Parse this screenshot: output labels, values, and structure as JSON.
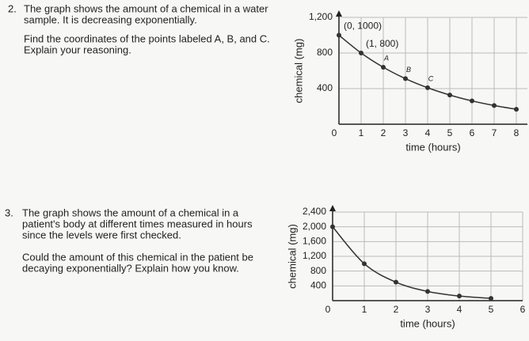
{
  "problems": [
    {
      "number": "2.",
      "lines": [
        "The graph shows the amount of a chemical in a water",
        "sample. It is decreasing exponentially."
      ],
      "question": [
        "Find the coordinates of the points labeled A, B, and C.",
        "Explain your reasoning."
      ]
    },
    {
      "number": "3.",
      "lines": [
        "The graph shows the amount of a chemical in a",
        "patient's body at different times measured in hours",
        "since the levels were first checked."
      ],
      "question": [
        "Could the amount of this chemical in the patient be",
        "decaying exponentially? Explain how you know."
      ]
    }
  ],
  "chart_data": [
    {
      "type": "scatter",
      "x_label": "time (hours)",
      "y_label": "chemical (mg)",
      "xlim": [
        0,
        8.5
      ],
      "ylim": [
        0,
        1200
      ],
      "xticks": [
        0,
        1,
        2,
        3,
        4,
        5,
        6,
        7,
        8
      ],
      "yticks": [
        400,
        800,
        {
          "value": 1200,
          "label": "1,200"
        }
      ],
      "grid": true,
      "curve": true,
      "series": [
        {
          "color": "#333333",
          "x": [
            0,
            1,
            2,
            3,
            4,
            5,
            6,
            7,
            8
          ],
          "values": [
            1000,
            800,
            640,
            512,
            410,
            328,
            262,
            210,
            168
          ]
        }
      ],
      "annotations": [
        {
          "text": "(0, 1000)",
          "point": 0
        },
        {
          "text": "(1, 800)",
          "point": 1
        },
        {
          "text": "A",
          "point": 2
        },
        {
          "text": "B",
          "point": 3
        },
        {
          "text": "C",
          "point": 4
        }
      ]
    },
    {
      "type": "scatter",
      "x_label": "time (hours)",
      "y_label": "chemical (mg)",
      "xlim": [
        0,
        6
      ],
      "ylim": [
        0,
        2400
      ],
      "xticks": [
        0,
        1,
        2,
        3,
        4,
        5,
        6
      ],
      "yticks": [
        400,
        800,
        {
          "value": 1200,
          "label": "1,200"
        },
        {
          "value": 1600,
          "label": "1,600"
        },
        {
          "value": 2000,
          "label": "2,000"
        },
        {
          "value": 2400,
          "label": "2,400"
        }
      ],
      "grid": true,
      "curve": true,
      "series": [
        {
          "color": "#333333",
          "x": [
            0,
            1,
            2,
            3,
            4,
            5
          ],
          "values": [
            2000,
            1000,
            500,
            250,
            125,
            62
          ]
        }
      ]
    }
  ]
}
